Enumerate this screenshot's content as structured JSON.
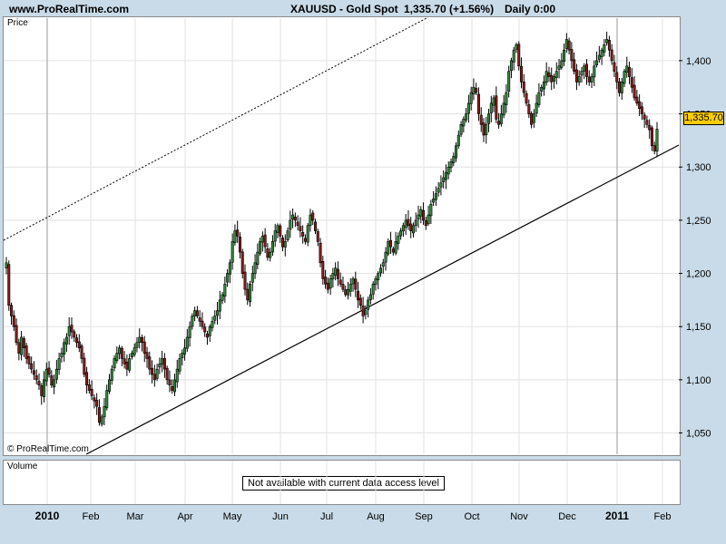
{
  "header": {
    "site": "www.ProRealTime.com",
    "symbol": "XAUUSD - Gold Spot",
    "price_change": "1,335.70 (+1.56%)",
    "timeframe": "Daily  0:00"
  },
  "panels": {
    "price_label": "Price",
    "volume_label": "Volume",
    "volume_notice": "Not available with current data access level",
    "copyright": "© ProRealTime.com",
    "last_price": "1,335.70"
  },
  "colors": {
    "up": "#2e8b3a",
    "down": "#8b1a1a",
    "background": "#c9dbe8",
    "last_price_box": "#ffcc00"
  },
  "chart_data": {
    "type": "candlestick",
    "ylim": [
      1030,
      1440
    ],
    "yticks": [
      1050,
      1100,
      1150,
      1200,
      1250,
      1300,
      1350,
      1400
    ],
    "ytick_labels": [
      "1,050",
      "1,100",
      "1,150",
      "1,200",
      "1,250",
      "1,300",
      "1,350",
      "1,400"
    ],
    "xticks": [
      {
        "label": "2010",
        "bold": true
      },
      {
        "label": "Feb",
        "bold": false
      },
      {
        "label": "Mar",
        "bold": false
      },
      {
        "label": "Apr",
        "bold": false
      },
      {
        "label": "May",
        "bold": false
      },
      {
        "label": "Jun",
        "bold": false
      },
      {
        "label": "Jul",
        "bold": false
      },
      {
        "label": "Aug",
        "bold": false
      },
      {
        "label": "Sep",
        "bold": false
      },
      {
        "label": "Oct",
        "bold": false
      },
      {
        "label": "Nov",
        "bold": false
      },
      {
        "label": "Dec",
        "bold": false
      },
      {
        "label": "2011",
        "bold": true
      },
      {
        "label": "Feb",
        "bold": false
      }
    ],
    "closes": [
      1210,
      1170,
      1160,
      1150,
      1135,
      1125,
      1140,
      1130,
      1120,
      1115,
      1110,
      1105,
      1100,
      1095,
      1085,
      1100,
      1110,
      1105,
      1095,
      1100,
      1110,
      1120,
      1125,
      1135,
      1140,
      1150,
      1145,
      1140,
      1135,
      1130,
      1120,
      1105,
      1095,
      1090,
      1085,
      1080,
      1075,
      1060,
      1065,
      1075,
      1090,
      1100,
      1110,
      1120,
      1125,
      1130,
      1120,
      1115,
      1110,
      1120,
      1125,
      1130,
      1135,
      1140,
      1135,
      1125,
      1120,
      1110,
      1105,
      1100,
      1110,
      1115,
      1120,
      1110,
      1100,
      1095,
      1090,
      1100,
      1110,
      1120,
      1125,
      1130,
      1140,
      1150,
      1160,
      1165,
      1160,
      1155,
      1150,
      1145,
      1140,
      1150,
      1155,
      1160,
      1165,
      1175,
      1180,
      1190,
      1200,
      1210,
      1230,
      1240,
      1235,
      1220,
      1200,
      1185,
      1175,
      1190,
      1200,
      1210,
      1220,
      1230,
      1235,
      1225,
      1215,
      1220,
      1230,
      1240,
      1245,
      1235,
      1225,
      1230,
      1240,
      1250,
      1255,
      1250,
      1245,
      1240,
      1235,
      1230,
      1245,
      1255,
      1250,
      1240,
      1230,
      1210,
      1195,
      1190,
      1185,
      1195,
      1200,
      1205,
      1195,
      1190,
      1185,
      1180,
      1185,
      1190,
      1195,
      1185,
      1175,
      1170,
      1160,
      1165,
      1175,
      1180,
      1190,
      1195,
      1200,
      1205,
      1210,
      1220,
      1230,
      1225,
      1220,
      1230,
      1235,
      1240,
      1245,
      1250,
      1245,
      1240,
      1245,
      1250,
      1255,
      1260,
      1250,
      1245,
      1255,
      1265,
      1270,
      1275,
      1280,
      1285,
      1290,
      1295,
      1300,
      1305,
      1310,
      1320,
      1330,
      1340,
      1345,
      1350,
      1360,
      1370,
      1375,
      1370,
      1350,
      1340,
      1330,
      1340,
      1350,
      1360,
      1365,
      1345,
      1340,
      1350,
      1360,
      1370,
      1390,
      1400,
      1410,
      1415,
      1395,
      1380,
      1370,
      1360,
      1350,
      1340,
      1350,
      1360,
      1370,
      1375,
      1380,
      1390,
      1385,
      1380,
      1385,
      1390,
      1395,
      1400,
      1410,
      1420,
      1410,
      1400,
      1390,
      1380,
      1385,
      1390,
      1395,
      1385,
      1380,
      1385,
      1395,
      1400,
      1405,
      1410,
      1415,
      1420,
      1410,
      1400,
      1390,
      1380,
      1370,
      1380,
      1390,
      1395,
      1385,
      1375,
      1365,
      1360,
      1355,
      1350,
      1345,
      1340,
      1335,
      1320,
      1315,
      1335.7
    ]
  }
}
